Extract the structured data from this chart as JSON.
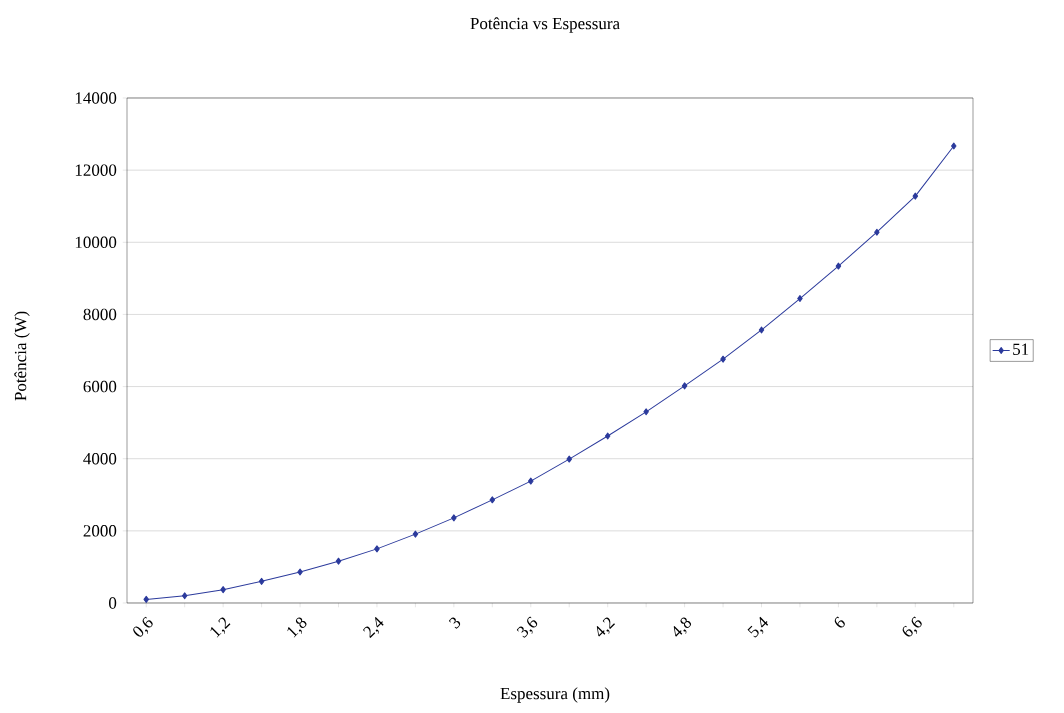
{
  "chart_data": {
    "type": "line",
    "title": "Potência vs Espessura",
    "xlabel": "Espessura (mm)",
    "ylabel": "Potência (W)",
    "categories": [
      "0,6",
      null,
      "1,2",
      null,
      "1,8",
      null,
      "2,4",
      null,
      "3",
      null,
      "3,6",
      null,
      "4,2",
      null,
      "4,8",
      null,
      "5,4",
      null,
      "6",
      null,
      "6,6",
      null
    ],
    "series": [
      {
        "name": "51",
        "color": "#2b3a9c",
        "values": [
          100,
          200,
          370,
          600,
          860,
          1160,
          1500,
          1910,
          2360,
          2860,
          3380,
          3990,
          4630,
          5300,
          6020,
          6760,
          7570,
          8440,
          9340,
          10280,
          11280,
          12670
        ]
      }
    ],
    "ylim": [
      0,
      14000
    ],
    "yticks": [
      0,
      2000,
      4000,
      6000,
      8000,
      10000,
      12000,
      14000
    ],
    "grid": "y",
    "legend": "right",
    "marker": "diamond"
  }
}
